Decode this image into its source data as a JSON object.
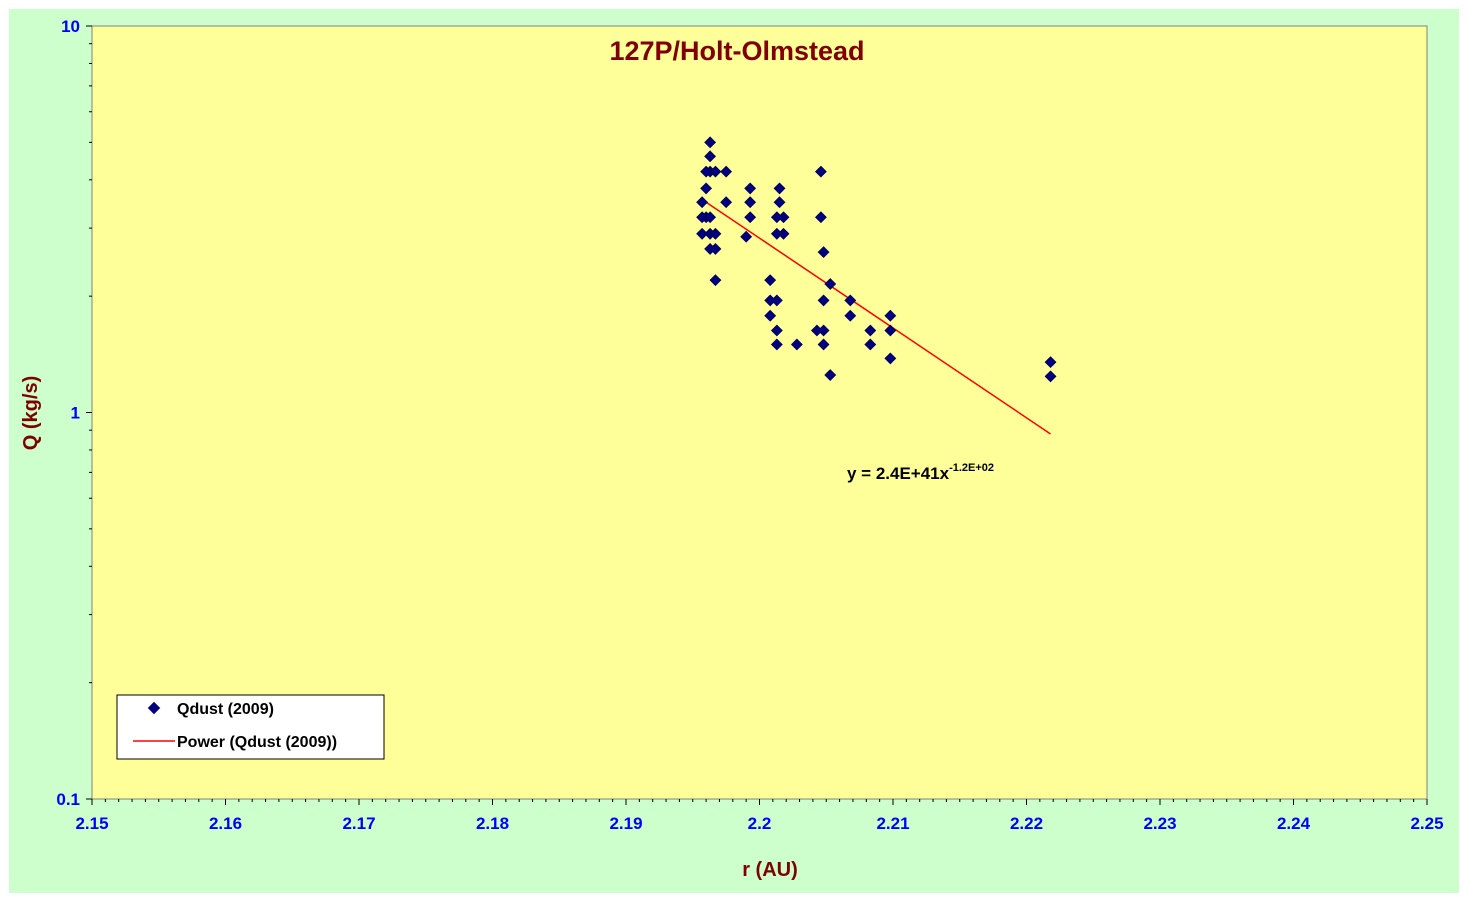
{
  "chart_data": {
    "type": "scatter",
    "title": "127P/Holt-Olmstead",
    "xlabel": "r (AU)",
    "ylabel": "Q (kg/s)",
    "xlim": [
      2.15,
      2.25
    ],
    "ylim": [
      0.1,
      10
    ],
    "yscale": "log",
    "x_ticks": [
      "2.15",
      "2.16",
      "2.17",
      "2.18",
      "2.19",
      "2.2",
      "2.21",
      "2.22",
      "2.23",
      "2.24",
      "2.25"
    ],
    "y_ticks": [
      "0.1",
      "1",
      "10"
    ],
    "grid": false,
    "legend_position": "bottom-left",
    "series": [
      {
        "name": "Qdust (2009)",
        "marker": "diamond",
        "color": "#000080",
        "points": [
          [
            2.1963,
            5.0
          ],
          [
            2.1963,
            4.6
          ],
          [
            2.1963,
            4.2
          ],
          [
            2.196,
            4.2
          ],
          [
            2.1967,
            4.2
          ],
          [
            2.1975,
            4.2
          ],
          [
            2.196,
            3.8
          ],
          [
            2.1957,
            3.5
          ],
          [
            2.196,
            3.2
          ],
          [
            2.1957,
            3.2
          ],
          [
            2.1963,
            3.2
          ],
          [
            2.1957,
            2.9
          ],
          [
            2.1963,
            2.9
          ],
          [
            2.1967,
            2.9
          ],
          [
            2.1963,
            2.65
          ],
          [
            2.1967,
            2.65
          ],
          [
            2.1967,
            2.2
          ],
          [
            2.1975,
            3.5
          ],
          [
            2.1993,
            3.8
          ],
          [
            2.1993,
            3.5
          ],
          [
            2.1993,
            3.2
          ],
          [
            2.199,
            2.85
          ],
          [
            2.2015,
            3.8
          ],
          [
            2.2015,
            3.5
          ],
          [
            2.2013,
            3.2
          ],
          [
            2.2018,
            3.2
          ],
          [
            2.2013,
            2.9
          ],
          [
            2.2018,
            2.9
          ],
          [
            2.2008,
            2.2
          ],
          [
            2.2008,
            1.95
          ],
          [
            2.2013,
            1.95
          ],
          [
            2.2008,
            1.78
          ],
          [
            2.2013,
            1.63
          ],
          [
            2.2013,
            1.5
          ],
          [
            2.2028,
            1.5
          ],
          [
            2.2043,
            1.63
          ],
          [
            2.2048,
            1.63
          ],
          [
            2.2048,
            1.5
          ],
          [
            2.2046,
            4.2
          ],
          [
            2.2046,
            3.2
          ],
          [
            2.2048,
            2.6
          ],
          [
            2.2048,
            1.95
          ],
          [
            2.2053,
            2.15
          ],
          [
            2.2053,
            1.25
          ],
          [
            2.2068,
            1.95
          ],
          [
            2.2068,
            1.78
          ],
          [
            2.2083,
            1.63
          ],
          [
            2.2083,
            1.5
          ],
          [
            2.2098,
            1.78
          ],
          [
            2.2098,
            1.63
          ],
          [
            2.2098,
            1.38
          ],
          [
            2.2218,
            1.35
          ],
          [
            2.2218,
            1.24
          ]
        ]
      },
      {
        "name": "Power (Qdust (2009))",
        "type": "line",
        "color": "#ff0000",
        "points": [
          [
            2.196,
            3.5
          ],
          [
            2.2218,
            0.88
          ]
        ]
      }
    ],
    "annotations": {
      "equation_main": "y = 2.4E+41x",
      "equation_sup": "-1.2E+02"
    },
    "legend": [
      "Qdust (2009)",
      "Power (Qdust (2009))"
    ]
  }
}
